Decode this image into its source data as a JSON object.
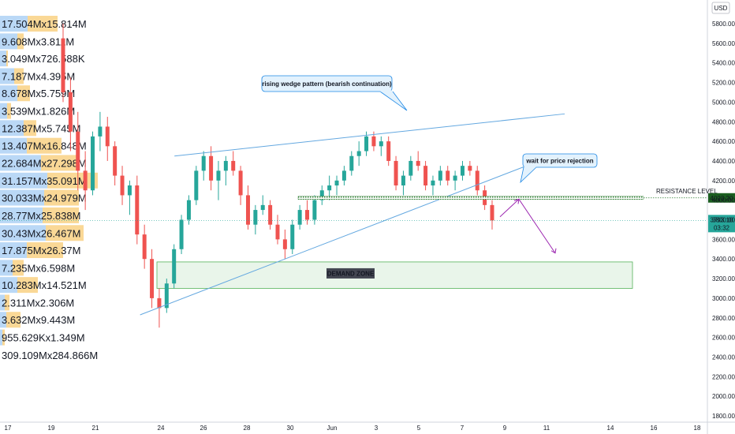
{
  "chart_data": {
    "type": "candlestick",
    "y_axis": {
      "currency": "USD",
      "ticks": [
        "5800.00",
        "5600.00",
        "5400.00",
        "5200.00",
        "5000.00",
        "4800.00",
        "4600.00",
        "4400.00",
        "4200.00",
        "4000.00",
        "3800.00",
        "3600.00",
        "3400.00",
        "3200.00",
        "3000.00",
        "2800.00",
        "2600.00",
        "2400.00",
        "2200.00",
        "2000.00",
        "1800.00"
      ],
      "range": [
        1750,
        5900
      ]
    },
    "x_axis": {
      "ticks": [
        "17",
        "19",
        "21",
        "24",
        "26",
        "28",
        "30",
        "Jun",
        "3",
        "5",
        "7",
        "9",
        "11",
        "14",
        "16",
        "18"
      ]
    },
    "volume_profile": [
      {
        "label": "17.504Mx15.814M",
        "price": 5800,
        "buy": 35,
        "sell": 38
      },
      {
        "label": "9.608Mx3.811M",
        "price": 5620,
        "buy": 22,
        "sell": 8
      },
      {
        "label": "3.049Mx726.588K",
        "price": 5445,
        "buy": 8,
        "sell": 2
      },
      {
        "label": "7.187Mx4.395M",
        "price": 5265,
        "buy": 18,
        "sell": 12
      },
      {
        "label": "8.678Mx5.759M",
        "price": 5090,
        "buy": 22,
        "sell": 16
      },
      {
        "label": "3.539Mx1.826M",
        "price": 4910,
        "buy": 9,
        "sell": 5
      },
      {
        "label": "12.387Mx5.745M",
        "price": 4735,
        "buy": 30,
        "sell": 16
      },
      {
        "label": "13.407Mx16.848M",
        "price": 4555,
        "buy": 34,
        "sell": 44
      },
      {
        "label": "22.684Mx27.298M",
        "price": 4380,
        "buy": 52,
        "sell": 48
      },
      {
        "label": "31.157Mx35.091M",
        "price": 4200,
        "buy": 60,
        "sell": 64
      },
      {
        "label": "30.033Mx24.979M",
        "price": 4025,
        "buy": 56,
        "sell": 44
      },
      {
        "label": "28.77Mx25.838M",
        "price": 3845,
        "buy": 54,
        "sell": 46
      },
      {
        "label": "30.43Mx26.467M",
        "price": 3665,
        "buy": 58,
        "sell": 48
      },
      {
        "label": "17.875Mx26.37M",
        "price": 3490,
        "buy": 34,
        "sell": 46
      },
      {
        "label": "7.235Mx6.598M",
        "price": 3310,
        "buy": 16,
        "sell": 14
      },
      {
        "label": "10.283Mx14.521M",
        "price": 3135,
        "buy": 22,
        "sell": 26
      },
      {
        "label": "2.311Mx2.306M",
        "price": 2955,
        "buy": 6,
        "sell": 6
      },
      {
        "label": "3.632Mx9.443M",
        "price": 2780,
        "buy": 8,
        "sell": 18
      },
      {
        "label": "955.629Kx1.349M",
        "price": 2600,
        "buy": 3,
        "sell": 3
      },
      {
        "label": "309.109Mx284.866M",
        "price": 2420,
        "buy": 0,
        "sell": 0
      }
    ],
    "candles": [
      [
        5650,
        5800,
        5000,
        5100
      ],
      [
        5100,
        5250,
        4500,
        4700
      ],
      [
        4700,
        4900,
        4100,
        4300
      ],
      [
        4300,
        4500,
        3900,
        4100
      ],
      [
        4100,
        4700,
        4050,
        4650
      ],
      [
        4650,
        4900,
        4500,
        4750
      ],
      [
        4750,
        4850,
        4400,
        4550
      ],
      [
        4550,
        4600,
        4150,
        4250
      ],
      [
        4250,
        4350,
        3950,
        4050
      ],
      [
        4050,
        4200,
        3850,
        4150
      ],
      [
        4150,
        4250,
        3550,
        3650
      ],
      [
        3650,
        3750,
        3300,
        3400
      ],
      [
        3400,
        3500,
        2900,
        3000
      ],
      [
        3000,
        3100,
        2700,
        2900
      ],
      [
        2900,
        3200,
        2850,
        3150
      ],
      [
        3150,
        3550,
        3100,
        3500
      ],
      [
        3500,
        3850,
        3450,
        3800
      ],
      [
        3800,
        4050,
        3750,
        4000
      ],
      [
        4000,
        4350,
        3950,
        4300
      ],
      [
        4300,
        4500,
        4200,
        4450
      ],
      [
        4450,
        4550,
        4100,
        4200
      ],
      [
        4200,
        4400,
        4000,
        4300
      ],
      [
        4300,
        4450,
        4150,
        4400
      ],
      [
        4400,
        4500,
        4250,
        4300
      ],
      [
        4300,
        4350,
        3950,
        4050
      ],
      [
        4050,
        4150,
        3700,
        3750
      ],
      [
        3750,
        3950,
        3650,
        3900
      ],
      [
        3900,
        4050,
        3850,
        3950
      ],
      [
        3950,
        4000,
        3700,
        3750
      ],
      [
        3750,
        3850,
        3550,
        3600
      ],
      [
        3600,
        3700,
        3400,
        3500
      ],
      [
        3500,
        3800,
        3450,
        3750
      ],
      [
        3750,
        3950,
        3700,
        3900
      ],
      [
        3900,
        4000,
        3750,
        3800
      ],
      [
        3800,
        4050,
        3750,
        4000
      ],
      [
        4000,
        4150,
        3950,
        4100
      ],
      [
        4100,
        4250,
        4000,
        4150
      ],
      [
        4150,
        4250,
        4050,
        4200
      ],
      [
        4200,
        4350,
        4150,
        4300
      ],
      [
        4300,
        4500,
        4250,
        4450
      ],
      [
        4450,
        4600,
        4350,
        4500
      ],
      [
        4500,
        4700,
        4450,
        4650
      ],
      [
        4650,
        4700,
        4500,
        4550
      ],
      [
        4550,
        4650,
        4450,
        4600
      ],
      [
        4600,
        4650,
        4350,
        4400
      ],
      [
        4400,
        4450,
        4100,
        4150
      ],
      [
        4150,
        4300,
        4050,
        4250
      ],
      [
        4250,
        4450,
        4200,
        4400
      ],
      [
        4400,
        4500,
        4300,
        4350
      ],
      [
        4350,
        4400,
        4100,
        4150
      ],
      [
        4150,
        4250,
        4050,
        4200
      ],
      [
        4200,
        4350,
        4150,
        4300
      ],
      [
        4300,
        4350,
        4150,
        4200
      ],
      [
        4200,
        4300,
        4100,
        4250
      ],
      [
        4250,
        4400,
        4200,
        4350
      ],
      [
        4350,
        4400,
        4250,
        4300
      ],
      [
        4300,
        4350,
        4050,
        4100
      ],
      [
        4100,
        4150,
        3900,
        3950
      ],
      [
        3950,
        4000,
        3700,
        3793
      ]
    ],
    "last_price": "3793.10",
    "countdown": "03:32",
    "resistance": {
      "price": 4023.2,
      "price_label": "4023.20",
      "label": "RESISTANCE LEVEL"
    },
    "demand_zone": {
      "top": 3370,
      "bottom": 3100,
      "label": "DEMAND ZONE"
    },
    "wedge_upper": [
      [
        0.28,
        4450
      ],
      [
        0.77,
        4880
      ]
    ],
    "wedge_lower": [
      [
        0.19,
        2830
      ],
      [
        0.74,
        4460
      ]
    ],
    "projection": [
      [
        3830
      ],
      [
        4010
      ],
      [
        3460
      ]
    ],
    "annotations": [
      {
        "text": "rising wedge pattern (bearish continuation)"
      },
      {
        "text": "wait for price rejection"
      }
    ]
  }
}
